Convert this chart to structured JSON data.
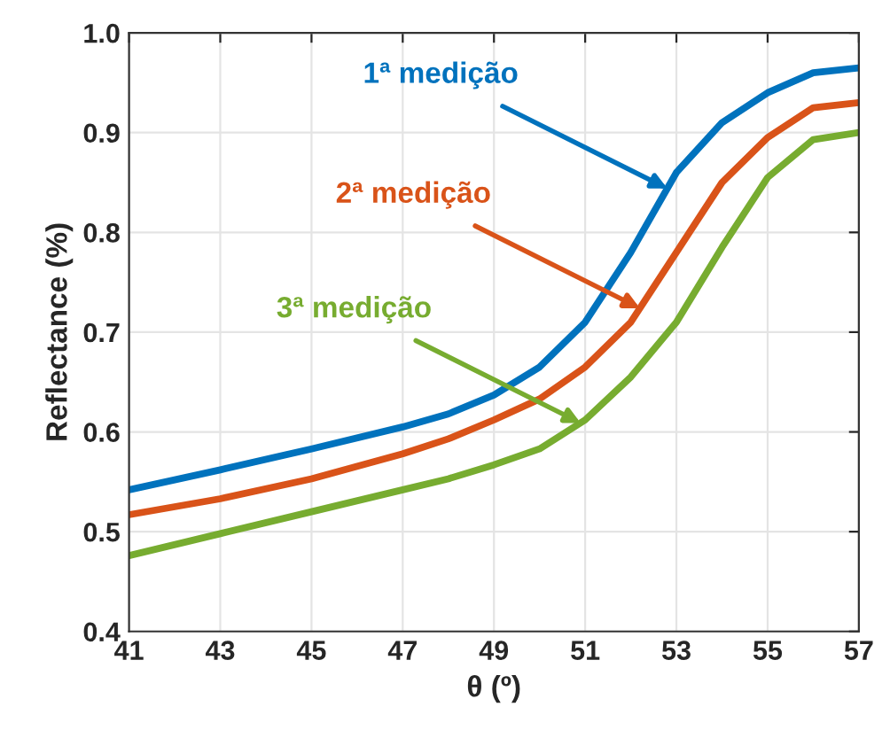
{
  "chart_data": {
    "type": "line",
    "xlabel": "θ (º)",
    "ylabel": "Reflectance (%)",
    "x": [
      41,
      43,
      45,
      47,
      48,
      49,
      50,
      51,
      52,
      53,
      54,
      55,
      56,
      57
    ],
    "series": [
      {
        "color": "#0072bd",
        "values": [
          0.542,
          0.562,
          0.583,
          0.605,
          0.618,
          0.637,
          0.665,
          0.71,
          0.78,
          0.86,
          0.91,
          0.94,
          0.96,
          0.965
        ]
      },
      {
        "color": "#d95319",
        "values": [
          0.517,
          0.533,
          0.553,
          0.578,
          0.593,
          0.612,
          0.633,
          0.665,
          0.71,
          0.78,
          0.85,
          0.895,
          0.925,
          0.93
        ]
      },
      {
        "color": "#77ac30",
        "values": [
          0.476,
          0.498,
          0.52,
          0.542,
          0.553,
          0.567,
          0.583,
          0.612,
          0.655,
          0.71,
          0.785,
          0.855,
          0.893,
          0.9
        ]
      }
    ],
    "annotations": [
      {
        "text": "1ª medição",
        "x": 52.8,
        "y": 0.844
      },
      {
        "text": "2ª medição",
        "x": 52.2,
        "y": 0.724
      },
      {
        "text": "3ª medição",
        "x": 50.9,
        "y": 0.609
      }
    ],
    "xlim": [
      41,
      57
    ],
    "ylim": [
      0.4,
      1.0
    ],
    "xticks": [
      41,
      43,
      45,
      47,
      49,
      51,
      53,
      55,
      57
    ],
    "yticks": [
      0.4,
      0.5,
      0.6,
      0.7,
      0.8,
      0.9,
      {
        "value": 1.0,
        "label": "1.0"
      }
    ],
    "grid": true
  }
}
